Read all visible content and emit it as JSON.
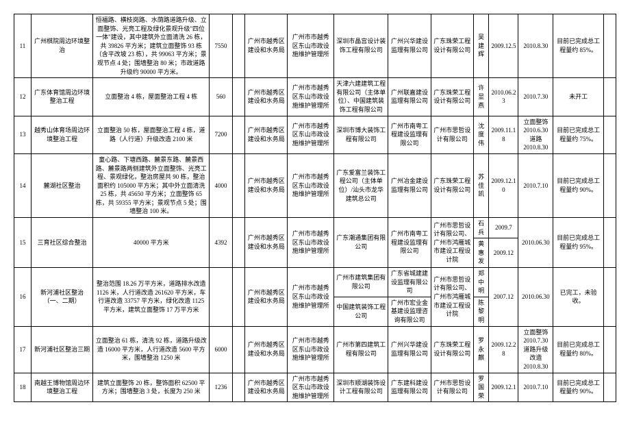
{
  "rows": [
    {
      "num": "11",
      "proj": "广州棋院周边环境整治",
      "desc": "恒福路、横枝岗路、水荫路道路升级、立面整饰、光亮工程及绿化景观升级\"四位一体\"建设，其中建筑外立面清洗 26 栋，共 39826 平方米；建筑立面整饰 93 栋（含平改坡 23 栋），共 99063 平方米；景观节点 4 处；围墙整治 80 米；市政道路升级约 90000 平方米。",
      "a": "7550",
      "b": "",
      "org1": "广州市越秀区建设和水务局",
      "org2": "广州市市越秀区东山市政设施维护管理所",
      "org3": "深圳市晶宫设计装饰工程有限公司",
      "org4": "广州兴华建设监理有限公司",
      "org5": "广东珠荣工程设计有限公司",
      "p": "吴建辉",
      "d1": "2009.12.5",
      "d2": "2010.8.30",
      "status": "目前已完成总工程量约 85%。",
      "last": ""
    },
    {
      "num": "12",
      "proj": "广东体育馆周边环境整治工程",
      "desc": "立面整治 4 栋，屋面整治工程 4 栋",
      "a": "560",
      "b": "",
      "org1": "广州市越秀区建设和水务局",
      "org2": "广州市市越秀区东山市政设施维护管理所",
      "org3": "天津六建建筑工程有限公司（主体单位）、中国建筑装饰工程有限公司",
      "org4": "广州联嘉建设监理有限公司",
      "org5": "广东珠荣工程设计有限公司",
      "p": "许显燕",
      "d1": "2010.06.23",
      "d2": "2010.7.30",
      "status": "未开工",
      "last": ""
    },
    {
      "num": "13",
      "proj": "越秀山体育场周边环境整治工程",
      "desc": "立面整治 50 栋，屋面整治工程 4 栋，道路（人行道）升级改造 2100 米",
      "a": "7200",
      "b": "",
      "org1": "广州市越秀区建设和水务局",
      "org2": "广州市市越秀区东山市政设施维护管理所",
      "org3": "深圳市博大装饰工程有限公司",
      "org4": "广州市南粤工程建设监理有限公司",
      "org5": "广州市思哲设计有限公司",
      "p": "沈度伟",
      "d1": "2009.11.18",
      "d2": "立面整饰 2010.6.30 道路 2010.8.30",
      "status": "目前已完成总工程量约 75%。",
      "last": ""
    },
    {
      "num": "14",
      "proj": "麓湖社区整治",
      "desc": "童心路、下塘西路、麓景东路、麓景西路、麓景路两侧建筑外立面整饰、光亮工程、景观绿化，整治房屋共 90 栋，整治面积约 105000 平方米；其中外立面清洗 25 栋，共 45650 平方米；立面整饰 65 栋，共 59355 平方米；景观节点 5 处；围墙整治 100 米。",
      "a": "4000",
      "b": "",
      "org1": "广州市越秀区建设和水务局",
      "org2": "广州市市越秀区东山市政设施维护管理所",
      "org3": "广东爱富兰装饰工程公司（主体单位）/汕头市龙华建筑总公司",
      "org4": "广州冶金建设监理有限公司",
      "org5": "广东珠荣工程设计有限公司",
      "p": "苏佳凯",
      "d1": "2009.12.10",
      "d2": "2010.7.10",
      "status": "目前已完成总工程量约 90%。",
      "last": ""
    },
    {
      "num": "15",
      "proj": "三育社区综合整治",
      "desc": "40000 平方米",
      "a": "4392",
      "b": "",
      "org1": "广州市越秀区建设和水务局",
      "org2": "广州市市越秀区东山市政设施维护管理所",
      "org3": "广东潮通集团有限公司",
      "org4": "广州市南粤工程建设监理有限公司",
      "org5": "广州市思哲设计有限公司、广州市鸿雁城市建设工程设计院",
      "p1": "石兵",
      "d11": "2009.7",
      "p2": "黄惠发",
      "d12": "2009.12",
      "d2": "2010.06.30",
      "status": "目前已完成总工程量约 95%。",
      "last": ""
    },
    {
      "num": "16",
      "proj": "新河浦社区整治（一、二期）",
      "desc": "整治范围 18.26 万平方米，道路排水改造 1126 米，人行道改造 261620 平方米，车行道改造 33757 平方米，绿化改造 1125 平方米，建筑立面整饰 17 万平方米",
      "a": "",
      "b": "",
      "org1": "广州市越秀区建设和水务局",
      "org2": "广州市市越秀区东山市政设施维护管理所",
      "org31": "广州市建筑集团有限公司",
      "org32": "中国建筑装饰工程公司",
      "org41": "广东省城建建设监理有限公司",
      "org42": "广州市宏业金基建设监理咨询有限公司",
      "org5": "广州市思哲设计有限公司、广州市鸿雁城市建设工程设计院",
      "p1": "郑中明",
      "p2": "陈黎明",
      "d1": "2007.12",
      "d2": "2010.06.30",
      "status": "已完工，未验收。",
      "last": ""
    },
    {
      "num": "17",
      "proj": "新河浦社区整治三期",
      "desc": "立面整治 61 栋，清洗 92 栋，道路升级改造 16000 平方米，人行道改造 5600 平方米，围墙整治 1250 米",
      "a": "6000",
      "b": "",
      "org1": "广州市越秀区建设和水务局",
      "org2": "广州市市越秀区东山市政设施维护管理所",
      "org3": "广州市第四建筑工程有限公司",
      "org4": "广州兴华建设监理有限公司",
      "org5": "广东珠荣工程设计有限公司",
      "p": "罗永麒",
      "d1": "2009.12.28",
      "d2": "立面整饰 2010.7.30 道路升级改造 2010.8.30",
      "status": "目前已完成总工程量约 80%。",
      "last": ""
    },
    {
      "num": "18",
      "proj": "南越王博物馆周边环境整治工程",
      "desc": "建筑立面整饰 20 栋，整饰面积 62500 平方米；围墙整治 3 处，长度为 250 米",
      "a": "1236",
      "b": "",
      "org1": "广州市越秀区建设和水务局",
      "org2": "广州市市越秀区东山市政设施维护管理所",
      "org3": "深圳市顺湖装饰设计工程有限公司",
      "org4": "广东建科建设监理有限公司",
      "org5": "广州市思哲设计有限公司",
      "p": "罗国荣",
      "d1": "2009.12.1",
      "d2": "2010.7.10",
      "status": "目前已完成总工程量约 90%。",
      "last": ""
    }
  ]
}
